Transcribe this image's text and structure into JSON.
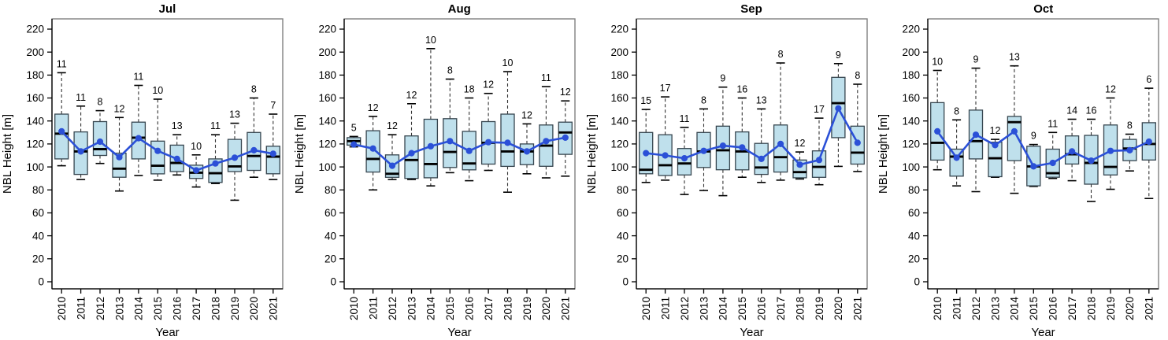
{
  "style": {
    "box_fill": "#BFE0EC",
    "box_border": "#36454F",
    "median_color": "#000000",
    "whisker_color": "#333333",
    "cap_color": "#000000",
    "mean_color": "#2B50D7",
    "axis_color": "#000000",
    "frame_color": "#808080",
    "text_color": "#000000",
    "background": "#FFFFFF"
  },
  "chart_data": [
    {
      "type": "boxplot",
      "title": "Jul",
      "xlabel": "Year",
      "ylabel": "NBL Height [m]",
      "ylim": [
        0,
        229
      ],
      "yticks": [
        0,
        20,
        40,
        60,
        80,
        100,
        120,
        140,
        160,
        180,
        200,
        220
      ],
      "grid": false,
      "legend": null,
      "categories": [
        "2010",
        "2011",
        "2012",
        "2013",
        "2014",
        "2015",
        "2016",
        "2017",
        "2018",
        "2019",
        "2020",
        "2021"
      ],
      "counts": [
        11,
        11,
        8,
        12,
        11,
        10,
        13,
        10,
        11,
        13,
        8,
        7
      ],
      "stats": {
        "low": [
          101,
          89,
          103,
          79,
          92.5,
          88.5,
          93,
          82.5,
          85.5,
          71,
          91,
          89
        ],
        "q1": [
          107,
          93.5,
          110,
          91,
          107,
          94,
          96,
          90,
          86.5,
          96,
          97,
          94
        ],
        "median": [
          129,
          113.5,
          115.5,
          98.5,
          125.5,
          101,
          103.5,
          95,
          94.5,
          100.5,
          109.5,
          109
        ],
        "q3": [
          146,
          130.5,
          139.5,
          112,
          139,
          122.5,
          119,
          101.5,
          107,
          124,
          130,
          118
        ],
        "high": [
          182,
          153,
          149,
          143,
          171,
          159,
          128,
          110.5,
          128,
          138,
          160,
          146
        ]
      },
      "means": [
        131,
        113.5,
        122,
        108.5,
        125,
        114,
        107,
        97,
        103,
        108,
        114.5,
        111.5
      ]
    },
    {
      "type": "boxplot",
      "title": "Aug",
      "xlabel": "Year",
      "ylabel": "NBL Height [m]",
      "ylim": [
        0,
        229
      ],
      "yticks": [
        0,
        20,
        40,
        60,
        80,
        100,
        120,
        140,
        160,
        180,
        200,
        220
      ],
      "grid": false,
      "legend": null,
      "categories": [
        "2010",
        "2011",
        "2012",
        "2013",
        "2014",
        "2015",
        "2016",
        "2017",
        "2018",
        "2019",
        "2020",
        "2021"
      ],
      "counts": [
        5,
        12,
        12,
        12,
        10,
        8,
        18,
        12,
        10,
        12,
        11,
        12
      ],
      "stats": {
        "low": [
          117.5,
          80,
          89,
          89,
          83.5,
          95,
          88,
          97,
          78,
          94,
          90.5,
          92
        ],
        "q1": [
          119,
          95.5,
          91,
          90,
          90.5,
          99.5,
          97.5,
          102.5,
          100.5,
          102,
          100.5,
          111
        ],
        "median": [
          122.5,
          107,
          94,
          106,
          102.5,
          113,
          103,
          121,
          113.5,
          113.5,
          118.5,
          130
        ],
        "q3": [
          125.5,
          131.5,
          110.5,
          127,
          141.5,
          142,
          131,
          139.5,
          146,
          120,
          136.5,
          139
        ],
        "high": [
          126.5,
          144,
          128,
          155,
          203,
          176.5,
          160,
          164,
          183,
          137.5,
          170,
          157.5
        ]
      },
      "means": [
        119.5,
        116,
        101,
        112,
        118,
        122.5,
        114,
        121.5,
        121,
        113.5,
        122.5,
        125.5
      ]
    },
    {
      "type": "boxplot",
      "title": "Sep",
      "xlabel": "Year",
      "ylabel": "NBL Height [m]",
      "ylim": [
        0,
        229
      ],
      "yticks": [
        0,
        20,
        40,
        60,
        80,
        100,
        120,
        140,
        160,
        180,
        200,
        220
      ],
      "grid": false,
      "legend": null,
      "categories": [
        "2010",
        "2011",
        "2012",
        "2013",
        "2014",
        "2015",
        "2016",
        "2017",
        "2018",
        "2019",
        "2020",
        "2021"
      ],
      "counts": [
        15,
        17,
        11,
        8,
        9,
        16,
        13,
        8,
        12,
        17,
        9,
        8
      ],
      "stats": {
        "low": [
          86.5,
          88.5,
          76,
          79.5,
          75,
          91,
          86.5,
          88.5,
          89.5,
          84.5,
          100.5,
          96
        ],
        "q1": [
          94,
          92.5,
          93,
          99.5,
          97.5,
          97.5,
          93.5,
          95.5,
          90.5,
          91,
          125.5,
          102.5
        ],
        "median": [
          97.5,
          101.5,
          103,
          113.5,
          114.5,
          113.5,
          99.5,
          108.5,
          95.5,
          100,
          155.5,
          112.5
        ],
        "q3": [
          130,
          128,
          116,
          130,
          135.5,
          130.5,
          120.5,
          136.5,
          106,
          114,
          178,
          135.5
        ],
        "high": [
          150,
          161,
          134.5,
          150.5,
          169.5,
          160,
          150.5,
          190.5,
          113,
          142.5,
          190,
          172
        ]
      },
      "means": [
        112,
        110,
        107.5,
        114,
        118.5,
        117,
        107,
        120,
        102,
        106,
        151,
        121
      ]
    },
    {
      "type": "boxplot",
      "title": "Oct",
      "xlabel": "Year",
      "ylabel": "NBL Height [m]",
      "ylim": [
        0,
        229
      ],
      "yticks": [
        0,
        20,
        40,
        60,
        80,
        100,
        120,
        140,
        160,
        180,
        200,
        220
      ],
      "grid": false,
      "legend": null,
      "categories": [
        "2010",
        "2011",
        "2012",
        "2013",
        "2014",
        "2015",
        "2016",
        "2017",
        "2018",
        "2019",
        "2020",
        "2021"
      ],
      "counts": [
        10,
        8,
        9,
        12,
        13,
        9,
        11,
        14,
        16,
        12,
        8,
        6
      ],
      "stats": {
        "low": [
          97.5,
          83.5,
          78.5,
          91,
          77,
          83,
          90,
          88,
          70,
          80.5,
          96.5,
          72.5
        ],
        "q1": [
          106,
          92,
          107,
          91.5,
          105.5,
          83.5,
          91,
          102.5,
          85,
          93,
          105.5,
          106
        ],
        "median": [
          121,
          109,
          122.5,
          107.5,
          139,
          100.5,
          94.5,
          111,
          103.5,
          100,
          116,
          120
        ],
        "q3": [
          156,
          115.5,
          149.5,
          121.5,
          144,
          118,
          115.5,
          127,
          127.5,
          136.5,
          124,
          138.5
        ],
        "high": [
          184,
          141,
          186,
          124,
          188,
          119.5,
          130,
          141.5,
          141.5,
          160,
          128.5,
          168.5
        ]
      },
      "means": [
        131,
        108,
        128,
        119,
        131,
        100.5,
        103.5,
        113.5,
        105.5,
        114,
        114.5,
        122
      ]
    }
  ]
}
